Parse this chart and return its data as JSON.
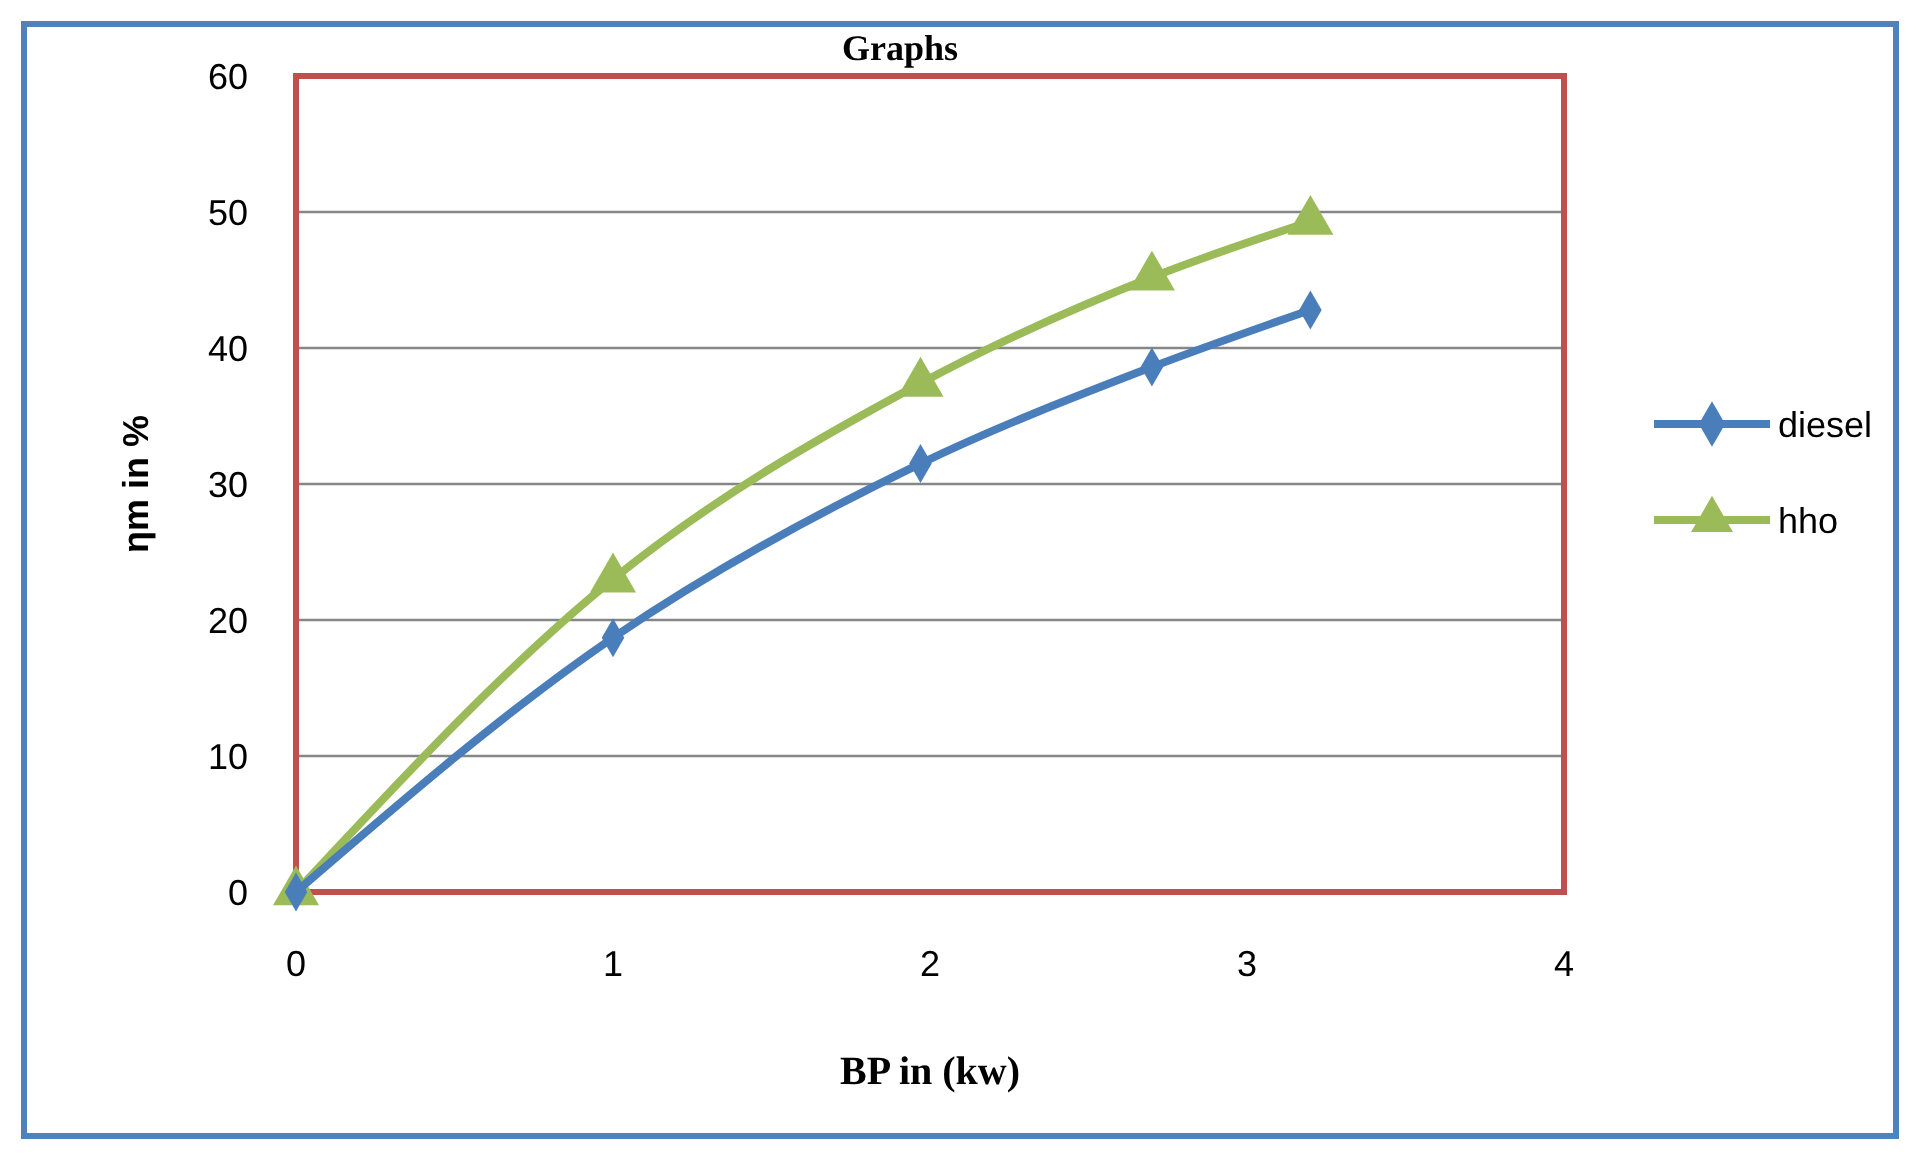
{
  "chart_data": {
    "type": "line",
    "title": "Graphs",
    "xlabel": "BP in (kw)",
    "ylabel": "ηm in %",
    "xlim": [
      0,
      4
    ],
    "xticks": [
      0,
      1,
      2,
      3,
      4
    ],
    "ylim": [
      0,
      60
    ],
    "yticks": [
      0,
      10,
      20,
      30,
      40,
      50,
      60
    ],
    "grid": "y",
    "legend": "right",
    "series": [
      {
        "name": "diesel",
        "color": "#4a7ebb",
        "marker": "diamond",
        "x": [
          0,
          1,
          1.97,
          2.7,
          3.2
        ],
        "values": [
          0,
          18.7,
          31.5,
          38.6,
          42.8
        ]
      },
      {
        "name": "hho",
        "color": "#9bbb59",
        "marker": "triangle",
        "x": [
          0,
          1,
          1.97,
          2.7,
          3.2
        ],
        "values": [
          0,
          23.0,
          37.4,
          45.2,
          49.3
        ]
      }
    ]
  }
}
